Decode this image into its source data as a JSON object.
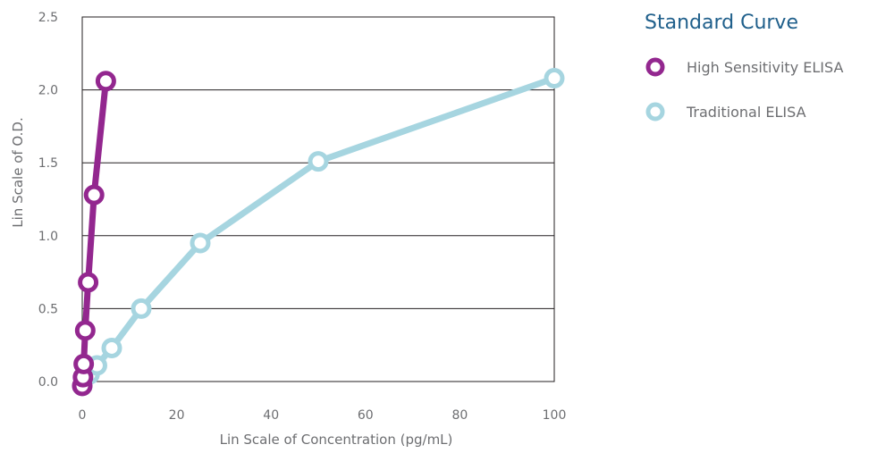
{
  "chart_data": {
    "type": "line",
    "title": "",
    "xlabel": "Lin Scale of Concentration (pg/mL)",
    "ylabel": "Lin Scale of O.D.",
    "xlim": [
      0,
      100
    ],
    "ylim": [
      0,
      2.5
    ],
    "x_ticks": [
      "0",
      "20",
      "40",
      "60",
      "80",
      "100"
    ],
    "y_ticks": [
      "0.0",
      "0.5",
      "1.0",
      "1.5",
      "2.0",
      "2.5"
    ],
    "grid": "horizontal",
    "legend": {
      "title": "Standard Curve",
      "position": "right"
    },
    "series": [
      {
        "name": "Traditional ELISA",
        "color": "#a6d5e0",
        "marker": "open-circle",
        "points": [
          {
            "x": 0,
            "y": -0.03
          },
          {
            "x": 1.56,
            "y": 0.05
          },
          {
            "x": 3.12,
            "y": 0.11
          },
          {
            "x": 6.25,
            "y": 0.23
          },
          {
            "x": 12.5,
            "y": 0.5
          },
          {
            "x": 25,
            "y": 0.95
          },
          {
            "x": 50,
            "y": 1.51
          },
          {
            "x": 100,
            "y": 2.08
          }
        ]
      },
      {
        "name": "High Sensitivity ELISA",
        "color": "#93278f",
        "marker": "open-circle",
        "points": [
          {
            "x": 0,
            "y": -0.03
          },
          {
            "x": 0.16,
            "y": 0.03
          },
          {
            "x": 0.31,
            "y": 0.12
          },
          {
            "x": 0.63,
            "y": 0.35
          },
          {
            "x": 1.25,
            "y": 0.68
          },
          {
            "x": 2.5,
            "y": 1.28
          },
          {
            "x": 5,
            "y": 2.06
          }
        ]
      }
    ]
  }
}
